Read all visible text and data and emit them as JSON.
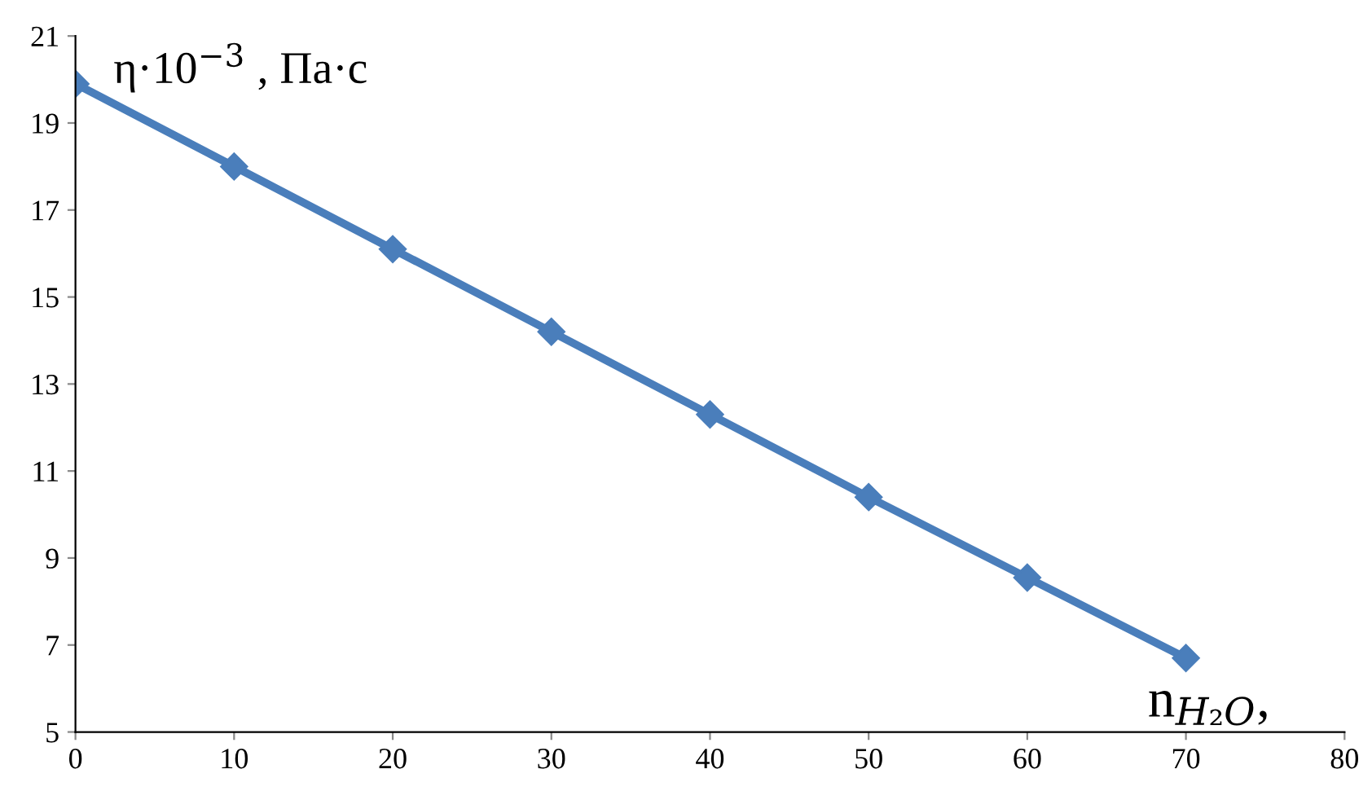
{
  "chart_data": {
    "type": "line",
    "xlabel": "n$_{H₂O}$,",
    "ylabel": "η·10$^{−3}$ , Па·с",
    "x": [
      0,
      10,
      20,
      30,
      40,
      50,
      60,
      70
    ],
    "series": [
      {
        "color": "#4a7ebb",
        "values": [
          19.9,
          18.0,
          16.1,
          14.2,
          12.3,
          10.4,
          8.55,
          6.7
        ]
      }
    ],
    "xlim": [
      0,
      80
    ],
    "xticks": [
      0,
      10,
      20,
      30,
      40,
      50,
      60,
      70,
      80
    ],
    "ylim": [
      5,
      21
    ],
    "yticks": [
      5,
      7,
      9,
      11,
      13,
      15,
      17,
      19,
      21
    ],
    "grid": false,
    "legend": false,
    "marker": "diamond",
    "line_style": "solid"
  }
}
